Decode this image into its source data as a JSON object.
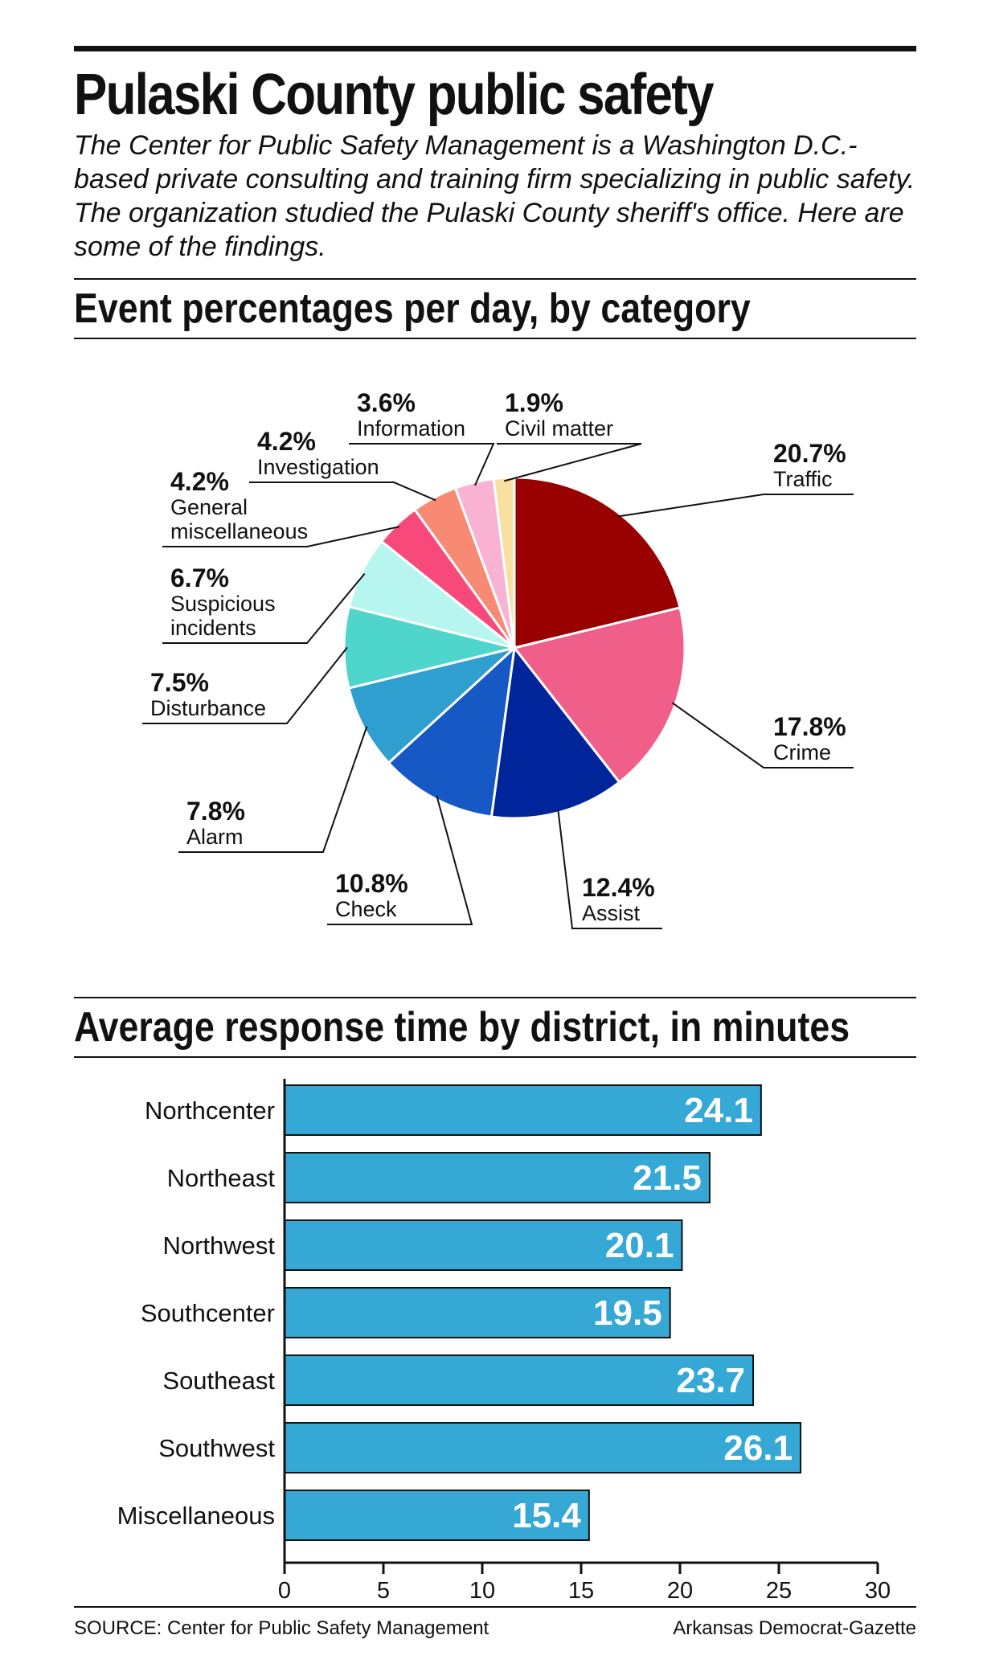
{
  "header": {
    "title": "Pulaski County public safety",
    "intro": "The Center for Public Safety Management is a Washington D.C.-based private consulting and training firm specializing in public safety. The organization studied the Pulaski County sheriff's office. Here are some of the findings."
  },
  "chart_data": [
    {
      "type": "pie",
      "title": "Event percentages per day, by category",
      "slices": [
        {
          "label": "Traffic",
          "label_lines": [
            "Traffic"
          ],
          "value": 20.7,
          "value_label": "20.7%",
          "color": "#990000"
        },
        {
          "label": "Crime",
          "label_lines": [
            "Crime"
          ],
          "value": 17.8,
          "value_label": "17.8%",
          "color": "#ef5f8a"
        },
        {
          "label": "Assist",
          "label_lines": [
            "Assist"
          ],
          "value": 12.4,
          "value_label": "12.4%",
          "color": "#00259a"
        },
        {
          "label": "Check",
          "label_lines": [
            "Check"
          ],
          "value": 10.8,
          "value_label": "10.8%",
          "color": "#1658c4"
        },
        {
          "label": "Alarm",
          "label_lines": [
            "Alarm"
          ],
          "value": 7.8,
          "value_label": "7.8%",
          "color": "#2f9fd0"
        },
        {
          "label": "Disturbance",
          "label_lines": [
            "Disturbance"
          ],
          "value": 7.5,
          "value_label": "7.5%",
          "color": "#4fd6cc"
        },
        {
          "label": "Suspicious incidents",
          "label_lines": [
            "Suspicious",
            "incidents"
          ],
          "value": 6.7,
          "value_label": "6.7%",
          "color": "#b6f6ee"
        },
        {
          "label": "General miscellaneous",
          "label_lines": [
            "General",
            "miscellaneous"
          ],
          "value": 4.2,
          "value_label": "4.2%",
          "color": "#f74a7a"
        },
        {
          "label": "Investigation",
          "label_lines": [
            "Investigation"
          ],
          "value": 4.2,
          "value_label": "4.2%",
          "color": "#f88a74"
        },
        {
          "label": "Information",
          "label_lines": [
            "Information"
          ],
          "value": 3.6,
          "value_label": "3.6%",
          "color": "#f9b2d2"
        },
        {
          "label": "Civil matter",
          "label_lines": [
            "Civil matter"
          ],
          "value": 1.9,
          "value_label": "1.9%",
          "color": "#f8e0a0"
        }
      ]
    },
    {
      "type": "bar",
      "orientation": "horizontal",
      "title": "Average response time by district, in minutes",
      "categories": [
        "Northcenter",
        "Northeast",
        "Northwest",
        "Southcenter",
        "Southeast",
        "Southwest",
        "Miscellaneous"
      ],
      "values": [
        24.1,
        21.5,
        20.1,
        19.5,
        23.7,
        26.1,
        15.4
      ],
      "value_labels": [
        "24.1",
        "21.5",
        "20.1",
        "19.5",
        "23.7",
        "26.1",
        "15.4"
      ],
      "xlim": [
        0,
        30
      ],
      "xticks": [
        0,
        5,
        10,
        15,
        20,
        25,
        30
      ],
      "xtick_labels": [
        "0",
        "5",
        "10",
        "15",
        "20",
        "25",
        "30"
      ],
      "bar_color": "#36a8d6",
      "value_label_color": "#ffffff"
    }
  ],
  "footer": {
    "source": "SOURCE: Center for Public Safety Management",
    "credit": "Arkansas Democrat-Gazette"
  }
}
